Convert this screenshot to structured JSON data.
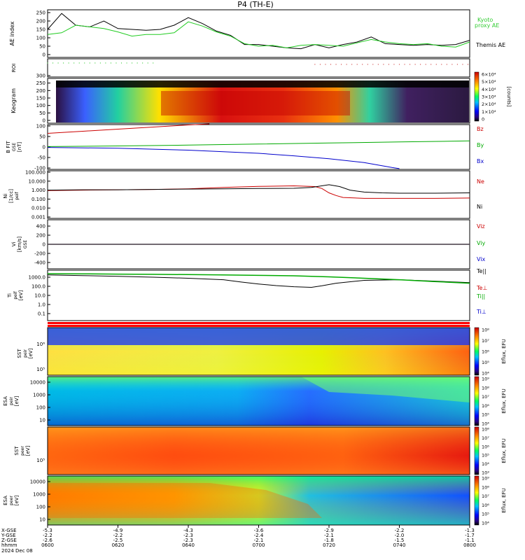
{
  "chart_data": {
    "type": "line",
    "title": "P4 (TH-E)",
    "time_axis": {
      "tick_labels": [
        "0600",
        "0620",
        "0640",
        "0700",
        "0720",
        "0740",
        "0800"
      ],
      "row_labels": [
        "X-GSE",
        "Y-GSE",
        "Z-GSE",
        "hhmm",
        "2024 Dec 08"
      ],
      "x_gse": [
        "-5.3",
        "-4.9",
        "-4.3",
        "-3.6",
        "-2.9",
        "-2.2",
        "-1.3"
      ],
      "y_gse": [
        "-2.2",
        "-2.2",
        "-2.3",
        "-2.4",
        "-2.1",
        "-2.0",
        "-1.7"
      ],
      "z_gse": [
        "-2.6",
        "-2.5",
        "-2.3",
        "-2.1",
        "-1.8",
        "-1.5",
        "-1.1"
      ]
    },
    "panels": [
      {
        "id": "ae",
        "ylabel": "AE index",
        "yticks": [
          "250",
          "200",
          "150",
          "100",
          "50",
          "0"
        ],
        "ylim": [
          -30,
          270
        ],
        "legend": [
          "Kyoto",
          "proxy AE",
          "Themis AE"
        ],
        "legend_colors": [
          "#33cc33",
          "#33cc33",
          "#000000"
        ],
        "series": [
          {
            "name": "Themis AE",
            "color": "#000000",
            "x": [
              0,
              4,
              8,
              12,
              16,
              20,
              24,
              28,
              32,
              36,
              40,
              44,
              48,
              52,
              56,
              60,
              64,
              68,
              72,
              76,
              80,
              84,
              88,
              92,
              96,
              100,
              104,
              108,
              112,
              116,
              120
            ],
            "y": [
              150,
              245,
              175,
              165,
              200,
              155,
              150,
              145,
              150,
              175,
              220,
              185,
              140,
              115,
              60,
              60,
              50,
              40,
              35,
              60,
              40,
              60,
              75,
              105,
              65,
              60,
              55,
              60,
              55,
              60,
              85
            ]
          },
          {
            "name": "Kyoto",
            "color": "#22cc22",
            "x": [
              0,
              4,
              8,
              12,
              16,
              20,
              24,
              28,
              32,
              36,
              40,
              44,
              48,
              52,
              56,
              60,
              64,
              68,
              72,
              76,
              80,
              84,
              88,
              92,
              96,
              100,
              104,
              108,
              112,
              116,
              120
            ],
            "y": [
              120,
              130,
              175,
              165,
              155,
              135,
              110,
              120,
              120,
              130,
              195,
              170,
              135,
              110,
              65,
              50,
              55,
              40,
              55,
              60,
              55,
              50,
              70,
              90,
              75,
              65,
              60,
              65,
              50,
              45,
              75
            ]
          }
        ]
      },
      {
        "id": "roi",
        "ylabel": "ROI",
        "series_colors": [
          "#33cc33",
          "#cc3333"
        ],
        "segments": [
          {
            "color": "#33cc33",
            "x_start": 0,
            "x_end": 30
          },
          {
            "color": "#cc3333",
            "x_start": 76,
            "x_end": 120
          }
        ]
      },
      {
        "id": "keogram",
        "ylabel": "Keogram",
        "yticks": [
          "300",
          "250",
          "200",
          "150",
          "100",
          "50",
          "0"
        ],
        "colorbar_label": "[counts]",
        "colorbar_ticks": [
          "6×10⁴",
          "5×10⁴",
          "4×10⁴",
          "3×10⁴",
          "2×10⁴",
          "1×10⁴",
          "0"
        ]
      },
      {
        "id": "bfield",
        "ylabel": "B FIT",
        "units": "[nT]",
        "coord": "GSE",
        "yticks": [
          "100",
          "50",
          "0",
          "-50",
          "-100"
        ],
        "ylim": [
          -100,
          100
        ],
        "legend": [
          "Bz",
          "By",
          "Bx"
        ],
        "series": [
          {
            "name": "Bz",
            "color": "#cc0000",
            "x": [
              0,
              10,
              20,
              30,
              40,
              46
            ],
            "y": [
              65,
              75,
              85,
              95,
              105,
              110
            ]
          },
          {
            "name": "By",
            "color": "#00aa00",
            "x": [
              0,
              20,
              40,
              60,
              80,
              100,
              120
            ],
            "y": [
              2,
              5,
              9,
              14,
              19,
              24,
              29
            ]
          },
          {
            "name": "Bx",
            "color": "#0000cc",
            "x": [
              0,
              20,
              40,
              60,
              70,
              80,
              90,
              98,
              100
            ],
            "y": [
              -2,
              -6,
              -15,
              -30,
              -42,
              -56,
              -74,
              -98,
              -103
            ]
          }
        ]
      },
      {
        "id": "density",
        "ylabel": "Ni",
        "units": "[1/cc]",
        "coord": "peif",
        "yticks": [
          "100.000",
          "10.000",
          "1.000",
          "0.100",
          "0.010",
          "0.001"
        ],
        "scale": "log",
        "ylim": [
          0.001,
          100
        ],
        "legend": [
          "Ne",
          "Ni"
        ],
        "series": [
          {
            "name": "Ne",
            "color": "#cc0000",
            "x": [
              0,
              10,
              20,
              30,
              40,
              50,
              60,
              70,
              76,
              78,
              80,
              82,
              84,
              90,
              100,
              110,
              120
            ],
            "y": [
              0.9,
              1.0,
              1.1,
              1.2,
              1.4,
              2.0,
              2.6,
              3.0,
              2.5,
              1.5,
              0.5,
              0.25,
              0.15,
              0.12,
              0.12,
              0.12,
              0.13
            ]
          },
          {
            "name": "Ni",
            "color": "#000000",
            "x": [
              0,
              10,
              20,
              30,
              40,
              50,
              60,
              70,
              75,
              80,
              83,
              86,
              90,
              95,
              100,
              110,
              120
            ],
            "y": [
              1.0,
              1.1,
              1.1,
              1.2,
              1.3,
              1.4,
              1.5,
              1.6,
              2.0,
              4.0,
              2.5,
              1.0,
              0.6,
              0.5,
              0.45,
              0.45,
              0.5
            ]
          }
        ]
      },
      {
        "id": "velocity",
        "ylabel": "Vi",
        "units": "[km/s]",
        "coord": "GSE",
        "yticks": [
          "400",
          "200",
          "0",
          "-200",
          "-400"
        ],
        "ylim": [
          -500,
          500
        ],
        "legend": [
          "Viz",
          "Viy",
          "Vix"
        ],
        "series": [
          {
            "name": "Viz",
            "color": "#cc0000",
            "x": [
              0,
              120
            ],
            "y": [
              0,
              0
            ]
          },
          {
            "name": "Viy",
            "color": "#00aa00",
            "x": [
              0,
              120
            ],
            "y": [
              0,
              0
            ]
          },
          {
            "name": "Vix",
            "color": "#0000cc",
            "x": [
              0,
              120
            ],
            "y": [
              0,
              0
            ]
          }
        ]
      },
      {
        "id": "temperature",
        "ylabel": "Ti",
        "units": "[eV]",
        "coord": "peif",
        "yticks": [
          "1000.0",
          "100.0",
          "10.0",
          "1.0",
          "0.1"
        ],
        "scale": "log",
        "ylim": [
          0.05,
          5000
        ],
        "legend": [
          "Te||",
          "Te⊥",
          "Ti||",
          "Ti⊥"
        ],
        "legend_colors": [
          "#000000",
          "#cc0000",
          "#00aa00",
          "#0000cc"
        ],
        "series": [
          {
            "name": "Te||",
            "color": "#000000",
            "x": [
              0,
              10,
              20,
              30,
              40,
              50,
              55,
              60,
              65,
              70,
              75,
              78,
              82,
              90,
              100,
              110,
              120
            ],
            "y": [
              2200,
              1900,
              1600,
              1300,
              1000,
              700,
              400,
              250,
              170,
              130,
              110,
              160,
              300,
              600,
              700,
              500,
              350
            ]
          },
          {
            "name": "Ti||",
            "color": "#00aa00",
            "x": [
              0,
              10,
              20,
              30,
              40,
              50,
              60,
              70,
              80,
              90,
              100,
              110,
              120
            ],
            "y": [
              3000,
              2900,
              2700,
              2600,
              2400,
              2200,
              2000,
              1800,
              1400,
              1000,
              700,
              450,
              300
            ]
          }
        ]
      },
      {
        "id": "state_bar",
        "colors": [
          "#ff0000",
          "#ffffff",
          "#ff0000"
        ]
      },
      {
        "id": "sst_electron",
        "ylabel": "SST",
        "units": "[eV]",
        "coord": "peir",
        "yticks": [
          "10⁶",
          "10⁵"
        ],
        "colorbar_label": "Eflux, EFU",
        "colorbar_ticks": [
          "10⁸",
          "10⁷",
          "10⁶",
          "10⁵",
          "10⁴"
        ]
      },
      {
        "id": "esa_electron",
        "ylabel": "ESA",
        "units": "[eV]",
        "coord": "peir",
        "yticks": [
          "10000",
          "1000",
          "100",
          "10"
        ],
        "colorbar_label": "Eflux, EFU",
        "colorbar_ticks": [
          "10⁹",
          "10⁸",
          "10⁷",
          "10⁶",
          "10⁵",
          "10⁴"
        ]
      },
      {
        "id": "sst_ion",
        "ylabel": "SST",
        "units": "[eV]",
        "coord": "peer",
        "yticks": [
          "10⁵"
        ],
        "colorbar_label": "Eflux, EFU",
        "colorbar_ticks": [
          "10⁸",
          "10⁷",
          "10⁶",
          "10⁵",
          "10⁴",
          "10³"
        ]
      },
      {
        "id": "esa_ion",
        "ylabel": "ESA",
        "units": "[eV]",
        "coord": "peer",
        "yticks": [
          "10000",
          "1000",
          "100",
          "10"
        ],
        "colorbar_label": "Eflux, EFU",
        "colorbar_ticks": [
          "10⁹",
          "10⁸",
          "10⁷",
          "10⁶",
          "10⁵",
          "10⁴"
        ]
      }
    ]
  }
}
